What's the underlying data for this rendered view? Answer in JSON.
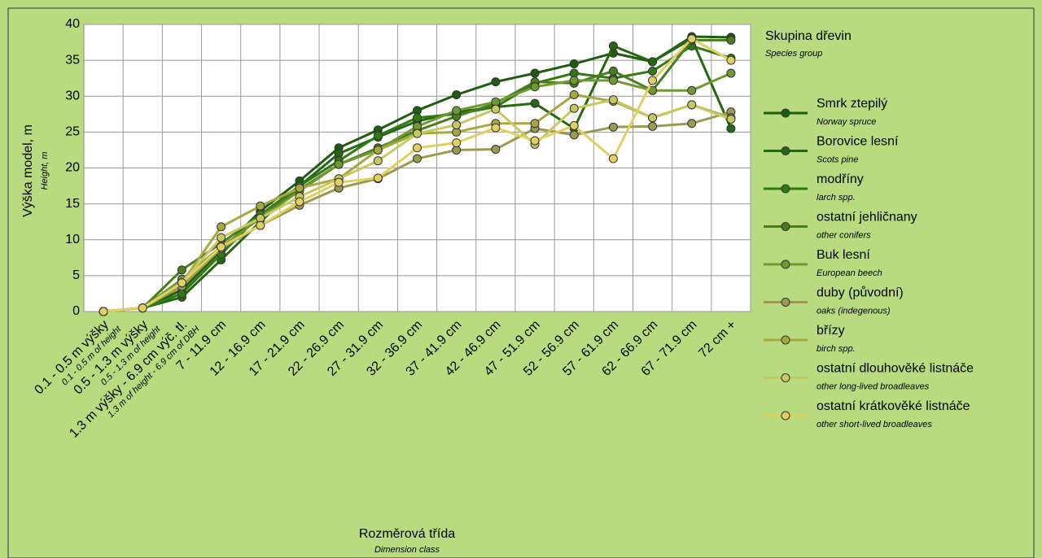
{
  "chart_data": {
    "type": "line",
    "title": "Skupina dřevin",
    "subtitle": "Species group",
    "y_label": "Výška model, m",
    "y_label_en": "Height, m",
    "x_label": "Rozměrová třída",
    "x_label_en": "Dimension class",
    "categories": [
      "0.1 - 0.5 m výšky",
      "0.5 - 1.3 m výšky",
      "1.3 m výšky - 6.9 cm výč. tl.",
      "7 - 11.9 cm",
      "12 - 16.9 cm",
      "17 - 21.9 cm",
      "22 - 26.9 cm",
      "27 - 31.9 cm",
      "32 - 36.9 cm",
      "37 - 41.9 cm",
      "42 - 46.9 cm",
      "47 - 51.9 cm",
      "52 - 56.9 cm",
      "57 - 61.9 cm",
      "62 - 66.9 cm",
      "67 - 71.9 cm",
      "72 cm +"
    ],
    "category_sublabels": [
      "0.1 - 0.5 m of height",
      "0.5 - 1.3 m of height",
      "1.3 m of height - 6.9 cm of DBH"
    ],
    "ylim": [
      0,
      40
    ],
    "yticks": [
      0,
      5,
      10,
      15,
      20,
      25,
      30,
      35,
      40
    ],
    "grid": true,
    "series": [
      {
        "name": "Smrk ztepilý",
        "name_en": "Norway spruce",
        "color": "#1e5c0f",
        "values": [
          0,
          0.5,
          3,
          8.5,
          14,
          18.2,
          22.8,
          25.3,
          28,
          30.2,
          32,
          33.2,
          34.5,
          36,
          34.8,
          38.3,
          38.2
        ]
      },
      {
        "name": "Borovice lesní",
        "name_en": "Scots pine",
        "color": "#26680f",
        "values": [
          0,
          0.5,
          2,
          7.2,
          12.5,
          17.5,
          22,
          24.3,
          26.5,
          27.8,
          28.5,
          29,
          25.5,
          37,
          34.8,
          38,
          25.5
        ]
      },
      {
        "name": "modříny",
        "name_en": "larch spp.",
        "color": "#307a14",
        "values": [
          0,
          0.5,
          2.5,
          8,
          13.5,
          17.5,
          21,
          24.5,
          27,
          27.5,
          28.5,
          31.8,
          33.2,
          32.5,
          33.5,
          37,
          35.3
        ]
      },
      {
        "name": "ostatní jehličnany",
        "name_en": "other conifers",
        "color": "#4a7d1c",
        "values": [
          0,
          0.5,
          5.8,
          9.5,
          13.5,
          17,
          20.5,
          22.8,
          25.2,
          27.2,
          29,
          32,
          31.8,
          33.5,
          30.8,
          37.8,
          37.8
        ]
      },
      {
        "name": "Buk lesní",
        "name_en": "European beech",
        "color": "#6e9a30",
        "values": [
          0,
          0.5,
          4.5,
          9,
          13,
          16.8,
          20.5,
          22.5,
          25.8,
          28,
          29.2,
          31.3,
          32.2,
          32.2,
          30.8,
          30.8,
          33.2
        ]
      },
      {
        "name": "duby (původní)",
        "name_en": "oaks (indegenous)",
        "color": "#9a9a50",
        "values": [
          0,
          0.5,
          3.5,
          8.8,
          12,
          14.8,
          17.2,
          18.5,
          21.3,
          22.5,
          22.6,
          25.5,
          24.6,
          25.7,
          25.8,
          26.2,
          27.8
        ]
      },
      {
        "name": "břízy",
        "name_en": "birch spp.",
        "color": "#a8a840",
        "values": [
          0,
          0.5,
          4,
          11.8,
          14.7,
          17.2,
          18.5,
          22.5,
          24.8,
          25,
          26.2,
          26.2,
          30.2,
          29.3,
          27,
          28.8,
          27
        ]
      },
      {
        "name": "ostatní dlouhověké listnáče",
        "name_en": "other long-lived broadleaves",
        "color": "#c8c860",
        "values": [
          0,
          0.5,
          4,
          10.3,
          13,
          16,
          18.5,
          21,
          24.8,
          26,
          28.2,
          23.3,
          28.3,
          29.5,
          27,
          28.8,
          26.8
        ]
      },
      {
        "name": "ostatní krátkověké listnáče",
        "name_en": "other short-lived broadleaves",
        "color": "#e0d060",
        "values": [
          0,
          0.5,
          4,
          9,
          12,
          15.3,
          18,
          18.6,
          22.8,
          23.5,
          25.6,
          23.8,
          25.9,
          21.3,
          32.2,
          38,
          35
        ]
      }
    ]
  }
}
